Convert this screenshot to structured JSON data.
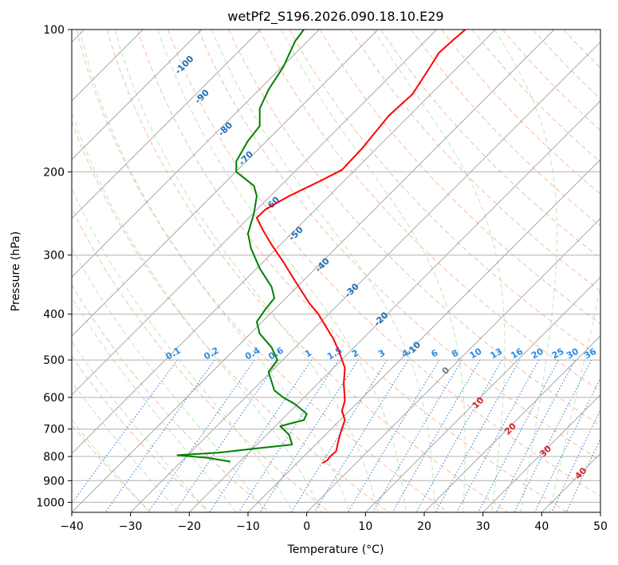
{
  "chart_data": {
    "type": "line",
    "title": "wetPf2_S196.2026.090.18.10.E29",
    "xlabel": "Temperature (°C)",
    "ylabel": "Pressure (hPa)",
    "xlim": [
      -40,
      50
    ],
    "ylim": [
      1050,
      100
    ],
    "y_scale": "log",
    "grid": true,
    "x_ticks": [
      -40,
      -30,
      -20,
      -10,
      0,
      10,
      20,
      30,
      40,
      50
    ],
    "y_ticks": [
      100,
      200,
      300,
      400,
      500,
      600,
      700,
      800,
      900,
      1000
    ],
    "isotherm_labels": [
      {
        "text": "-100",
        "x": -20.5,
        "p": 120
      },
      {
        "text": "-90",
        "x": -17.5,
        "p": 140
      },
      {
        "text": "-80",
        "x": -13.5,
        "p": 164
      },
      {
        "text": "-70",
        "x": -10,
        "p": 189
      },
      {
        "text": "-60",
        "x": -5.5,
        "p": 236
      },
      {
        "text": "-50",
        "x": -1.5,
        "p": 273
      },
      {
        "text": "-40",
        "x": 3,
        "p": 318
      },
      {
        "text": "-30",
        "x": 8,
        "p": 360
      },
      {
        "text": "-20",
        "x": 13,
        "p": 414
      },
      {
        "text": "-10",
        "x": 18.5,
        "p": 478
      },
      {
        "text": "0",
        "x": 24,
        "p": 532
      },
      {
        "text": "10",
        "x": 29.5,
        "p": 622
      },
      {
        "text": "20",
        "x": 35,
        "p": 706
      },
      {
        "text": "30",
        "x": 41,
        "p": 788
      },
      {
        "text": "40",
        "x": 47,
        "p": 877
      }
    ],
    "mixing_ratio_labels": [
      {
        "text": "0.1",
        "x": -22.5
      },
      {
        "text": "0.2",
        "x": -16
      },
      {
        "text": "0.4",
        "x": -9
      },
      {
        "text": "0.6",
        "x": -5
      },
      {
        "text": "1",
        "x": 0.5
      },
      {
        "text": "1.5",
        "x": 5
      },
      {
        "text": "2",
        "x": 8.5
      },
      {
        "text": "3",
        "x": 13
      },
      {
        "text": "4",
        "x": 17
      },
      {
        "text": "6",
        "x": 22
      },
      {
        "text": "8",
        "x": 25.5
      },
      {
        "text": "10",
        "x": 29
      },
      {
        "text": "13",
        "x": 32.5
      },
      {
        "text": "16",
        "x": 36
      },
      {
        "text": "20",
        "x": 39.5
      },
      {
        "text": "25",
        "x": 43
      },
      {
        "text": "30",
        "x": 45.5
      },
      {
        "text": "36",
        "x": 48.5
      }
    ],
    "series": [
      {
        "color": "#ff0000",
        "points": [
          [
            27,
            100
          ],
          [
            25,
            105
          ],
          [
            22.5,
            112
          ],
          [
            21,
            120
          ],
          [
            18,
            137
          ],
          [
            14,
            152
          ],
          [
            9.5,
            178
          ],
          [
            6,
            198
          ],
          [
            2,
            210
          ],
          [
            -3,
            225
          ],
          [
            -7,
            240
          ],
          [
            -8.5,
            250
          ],
          [
            -7.5,
            265
          ],
          [
            -6,
            285
          ],
          [
            -4,
            310
          ],
          [
            -2,
            340
          ],
          [
            0.5,
            380
          ],
          [
            2,
            400
          ],
          [
            3,
            420
          ],
          [
            4.5,
            450
          ],
          [
            5.5,
            480
          ],
          [
            6.5,
            520
          ],
          [
            6.3,
            560
          ],
          [
            6.5,
            610
          ],
          [
            6,
            640
          ],
          [
            6.5,
            670
          ],
          [
            5.8,
            710
          ],
          [
            5.3,
            750
          ],
          [
            5,
            780
          ],
          [
            4,
            800
          ],
          [
            3.5,
            815
          ],
          [
            2.7,
            826
          ]
        ]
      },
      {
        "color": "#008000",
        "points": [
          [
            -0.5,
            100
          ],
          [
            -2,
            106
          ],
          [
            -4,
            120
          ],
          [
            -6.5,
            134
          ],
          [
            -8,
            147
          ],
          [
            -8,
            160
          ],
          [
            -10,
            172
          ],
          [
            -12,
            190
          ],
          [
            -12,
            200
          ],
          [
            -9,
            214
          ],
          [
            -8.5,
            225
          ],
          [
            -9,
            245
          ],
          [
            -10,
            270
          ],
          [
            -9.5,
            290
          ],
          [
            -8,
            320
          ],
          [
            -6,
            350
          ],
          [
            -5.5,
            370
          ],
          [
            -7,
            390
          ],
          [
            -8.5,
            415
          ],
          [
            -8,
            440
          ],
          [
            -6,
            470
          ],
          [
            -5,
            500
          ],
          [
            -6.5,
            530
          ],
          [
            -6,
            555
          ],
          [
            -5.5,
            580
          ],
          [
            -4,
            600
          ],
          [
            -2,
            620
          ],
          [
            0,
            650
          ],
          [
            -0.5,
            670
          ],
          [
            -4.5,
            690
          ],
          [
            -3,
            720
          ],
          [
            -2.5,
            755
          ],
          [
            -9,
            770
          ],
          [
            -15,
            785
          ],
          [
            -22,
            795
          ],
          [
            -17,
            805
          ],
          [
            -13,
            820
          ]
        ]
      }
    ]
  }
}
